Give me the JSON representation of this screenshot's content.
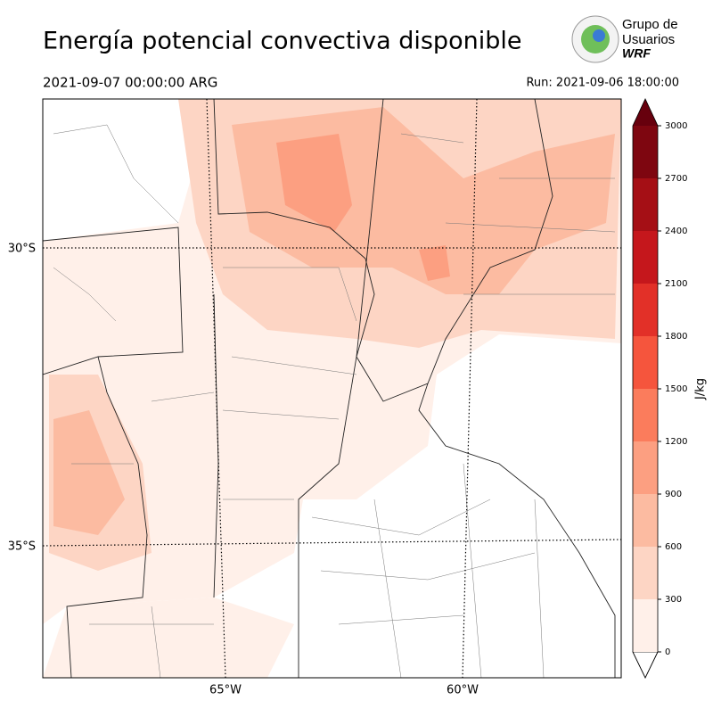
{
  "header": {
    "title": "Energía potencial convectiva disponible",
    "valid_time": "2021-09-07 00:00:00 ARG",
    "run_time": "Run: 2021-09-06 18:00:00"
  },
  "logo": {
    "line1": "Grupo de",
    "line2": "Usuarios",
    "line3": "WRF"
  },
  "map": {
    "lat_labels": [
      "30°S",
      "35°S"
    ],
    "lon_labels": [
      "65°W",
      "60°W"
    ]
  },
  "colorbar": {
    "label": "J/kg",
    "ticks": [
      0,
      300,
      600,
      900,
      1200,
      1500,
      1800,
      2100,
      2400,
      2700,
      3000
    ],
    "colors": [
      "#fff0e9",
      "#fdd5c4",
      "#fcbba1",
      "#fc9f81",
      "#fb7c5c",
      "#f5553d",
      "#e23028",
      "#c5171c",
      "#a50f15",
      "#7e0610"
    ],
    "over_color": "#67000d",
    "under_color": "#ffffff"
  }
}
